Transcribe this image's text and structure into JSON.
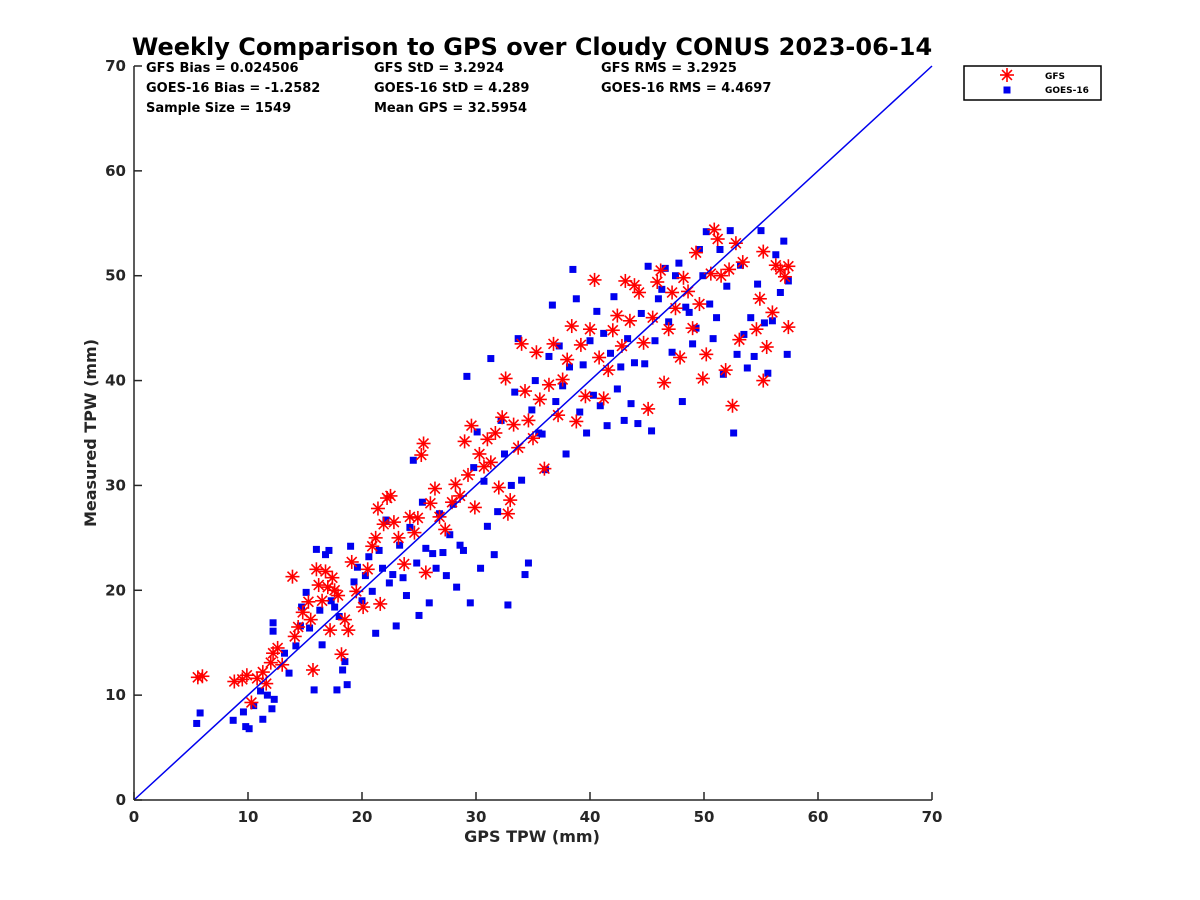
{
  "chart_data": {
    "type": "scatter",
    "title": "Weekly Comparison to GPS over Cloudy CONUS 2023-06-14",
    "xlabel": "GPS TPW (mm)",
    "ylabel": "Measured TPW (mm)",
    "xlim": [
      0,
      70
    ],
    "ylim": [
      0,
      70
    ],
    "xticks": [
      "0",
      "10",
      "20",
      "30",
      "40",
      "50",
      "60",
      "70"
    ],
    "yticks": [
      "0",
      "10",
      "20",
      "30",
      "40",
      "50",
      "60",
      "70"
    ],
    "grid": false,
    "legend_position": "outside-top-right",
    "reference_line": {
      "x": [
        0,
        70
      ],
      "y": [
        0,
        70
      ],
      "color": "#0000ee"
    },
    "stats": [
      [
        "GFS Bias = 0.024506",
        "GFS StD = 3.2924",
        "GFS RMS = 3.2925"
      ],
      [
        "GOES-16 Bias = -1.2582",
        "GOES-16 StD = 4.289",
        "GOES-16 RMS = 4.4697"
      ],
      [
        "Sample Size = 1549",
        "Mean GPS = 32.5954",
        ""
      ]
    ],
    "series": [
      {
        "name": "GFS",
        "marker": "asterisk",
        "color": "#ff0000",
        "points": [
          [
            5.6,
            11.7
          ],
          [
            6.0,
            11.8
          ],
          [
            8.8,
            11.3
          ],
          [
            9.5,
            11.5
          ],
          [
            9.9,
            11.9
          ],
          [
            10.3,
            9.3
          ],
          [
            10.8,
            11.6
          ],
          [
            11.3,
            12.2
          ],
          [
            11.6,
            11.1
          ],
          [
            12.0,
            13.1
          ],
          [
            12.2,
            14.0
          ],
          [
            12.6,
            14.5
          ],
          [
            13.0,
            12.9
          ],
          [
            13.9,
            21.3
          ],
          [
            14.1,
            15.6
          ],
          [
            14.4,
            16.5
          ],
          [
            14.8,
            17.9
          ],
          [
            15.3,
            18.9
          ],
          [
            15.5,
            17.2
          ],
          [
            15.7,
            12.4
          ],
          [
            16.0,
            22.0
          ],
          [
            16.2,
            20.5
          ],
          [
            16.5,
            19.0
          ],
          [
            16.8,
            21.8
          ],
          [
            17.0,
            20.3
          ],
          [
            17.2,
            16.2
          ],
          [
            17.4,
            21.2
          ],
          [
            17.6,
            20.0
          ],
          [
            17.9,
            19.5
          ],
          [
            18.2,
            13.9
          ],
          [
            18.5,
            17.2
          ],
          [
            18.8,
            16.2
          ],
          [
            19.1,
            22.7
          ],
          [
            19.5,
            19.9
          ],
          [
            20.1,
            18.4
          ],
          [
            20.5,
            22.0
          ],
          [
            20.9,
            24.2
          ],
          [
            21.2,
            25.0
          ],
          [
            21.4,
            27.8
          ],
          [
            21.6,
            18.7
          ],
          [
            21.9,
            26.3
          ],
          [
            22.2,
            28.8
          ],
          [
            22.5,
            29.0
          ],
          [
            22.8,
            26.5
          ],
          [
            23.2,
            25.0
          ],
          [
            23.7,
            22.5
          ],
          [
            24.2,
            27.0
          ],
          [
            24.6,
            25.5
          ],
          [
            24.9,
            26.9
          ],
          [
            25.2,
            32.9
          ],
          [
            25.4,
            34.0
          ],
          [
            25.6,
            21.7
          ],
          [
            26.0,
            28.3
          ],
          [
            26.4,
            29.7
          ],
          [
            26.8,
            27.0
          ],
          [
            27.3,
            25.8
          ],
          [
            27.9,
            28.4
          ],
          [
            28.2,
            30.1
          ],
          [
            28.6,
            29.0
          ],
          [
            29.0,
            34.2
          ],
          [
            29.3,
            31.0
          ],
          [
            29.6,
            35.7
          ],
          [
            29.9,
            27.9
          ],
          [
            30.3,
            33.0
          ],
          [
            30.7,
            31.8
          ],
          [
            31.0,
            34.4
          ],
          [
            31.3,
            32.2
          ],
          [
            31.7,
            35.0
          ],
          [
            32.0,
            29.8
          ],
          [
            32.3,
            36.5
          ],
          [
            32.6,
            40.2
          ],
          [
            32.8,
            27.3
          ],
          [
            33.0,
            28.6
          ],
          [
            33.3,
            35.8
          ],
          [
            33.7,
            33.6
          ],
          [
            34.0,
            43.5
          ],
          [
            34.3,
            39.0
          ],
          [
            34.6,
            36.2
          ],
          [
            35.0,
            34.5
          ],
          [
            35.3,
            42.7
          ],
          [
            35.6,
            38.2
          ],
          [
            36.0,
            31.6
          ],
          [
            36.4,
            39.6
          ],
          [
            36.8,
            43.5
          ],
          [
            37.2,
            36.7
          ],
          [
            37.6,
            40.1
          ],
          [
            38.0,
            42.0
          ],
          [
            38.4,
            45.2
          ],
          [
            38.8,
            36.1
          ],
          [
            39.2,
            43.4
          ],
          [
            39.6,
            38.5
          ],
          [
            40.0,
            44.9
          ],
          [
            40.4,
            49.6
          ],
          [
            40.8,
            42.2
          ],
          [
            41.2,
            38.3
          ],
          [
            41.6,
            41.0
          ],
          [
            42.0,
            44.8
          ],
          [
            42.4,
            46.2
          ],
          [
            42.8,
            43.3
          ],
          [
            43.1,
            49.5
          ],
          [
            43.5,
            45.7
          ],
          [
            43.9,
            49.1
          ],
          [
            44.3,
            48.4
          ],
          [
            44.7,
            43.6
          ],
          [
            45.1,
            37.3
          ],
          [
            45.5,
            46.0
          ],
          [
            45.9,
            49.4
          ],
          [
            46.2,
            50.5
          ],
          [
            46.5,
            39.8
          ],
          [
            46.9,
            44.9
          ],
          [
            47.2,
            48.4
          ],
          [
            47.5,
            46.9
          ],
          [
            47.9,
            42.2
          ],
          [
            48.2,
            49.8
          ],
          [
            48.6,
            48.5
          ],
          [
            49.0,
            45.0
          ],
          [
            49.3,
            52.2
          ],
          [
            49.6,
            47.3
          ],
          [
            49.9,
            40.2
          ],
          [
            50.2,
            42.5
          ],
          [
            50.6,
            50.2
          ],
          [
            50.9,
            54.4
          ],
          [
            51.2,
            53.5
          ],
          [
            51.5,
            50.0
          ],
          [
            51.9,
            41.0
          ],
          [
            52.2,
            50.6
          ],
          [
            52.5,
            37.6
          ],
          [
            52.8,
            53.1
          ],
          [
            53.1,
            43.9
          ],
          [
            53.4,
            51.3
          ],
          [
            54.6,
            44.9
          ],
          [
            54.9,
            47.8
          ],
          [
            55.2,
            52.3
          ],
          [
            55.5,
            43.2
          ],
          [
            55.2,
            40.0
          ],
          [
            56.0,
            46.5
          ],
          [
            56.3,
            51.0
          ],
          [
            56.7,
            50.6
          ],
          [
            57.1,
            49.9
          ],
          [
            57.4,
            50.9
          ],
          [
            57.4,
            45.1
          ]
        ]
      },
      {
        "name": "GOES-16",
        "marker": "square",
        "color": "#0000ee",
        "points": [
          [
            5.5,
            7.3
          ],
          [
            5.8,
            8.3
          ],
          [
            8.7,
            7.6
          ],
          [
            9.6,
            8.4
          ],
          [
            9.8,
            7.0
          ],
          [
            10.1,
            6.8
          ],
          [
            10.5,
            9.0
          ],
          [
            11.1,
            10.4
          ],
          [
            11.3,
            7.7
          ],
          [
            11.7,
            10.0
          ],
          [
            12.1,
            8.7
          ],
          [
            12.3,
            9.6
          ],
          [
            12.2,
            16.1
          ],
          [
            12.2,
            16.9
          ],
          [
            13.2,
            14.0
          ],
          [
            13.6,
            12.1
          ],
          [
            14.2,
            14.7
          ],
          [
            14.6,
            16.6
          ],
          [
            14.7,
            18.4
          ],
          [
            15.1,
            19.8
          ],
          [
            15.4,
            16.4
          ],
          [
            15.8,
            10.5
          ],
          [
            16.0,
            23.9
          ],
          [
            16.3,
            18.1
          ],
          [
            16.5,
            14.8
          ],
          [
            16.8,
            23.4
          ],
          [
            17.1,
            23.8
          ],
          [
            17.3,
            19.0
          ],
          [
            17.6,
            18.4
          ],
          [
            17.8,
            10.5
          ],
          [
            18.0,
            17.5
          ],
          [
            18.3,
            12.4
          ],
          [
            18.5,
            13.2
          ],
          [
            18.7,
            11.0
          ],
          [
            19.0,
            24.2
          ],
          [
            19.3,
            20.8
          ],
          [
            19.6,
            22.2
          ],
          [
            20.0,
            19.0
          ],
          [
            20.3,
            21.4
          ],
          [
            20.6,
            23.2
          ],
          [
            20.9,
            19.9
          ],
          [
            21.2,
            15.9
          ],
          [
            21.5,
            23.8
          ],
          [
            21.8,
            22.1
          ],
          [
            22.1,
            26.7
          ],
          [
            22.4,
            20.7
          ],
          [
            22.7,
            21.5
          ],
          [
            23.0,
            16.6
          ],
          [
            23.3,
            24.3
          ],
          [
            23.6,
            21.2
          ],
          [
            23.9,
            19.5
          ],
          [
            24.2,
            26.0
          ],
          [
            24.5,
            32.4
          ],
          [
            24.8,
            22.6
          ],
          [
            25.0,
            17.6
          ],
          [
            25.3,
            28.4
          ],
          [
            25.6,
            24.0
          ],
          [
            25.9,
            18.8
          ],
          [
            26.2,
            23.5
          ],
          [
            26.5,
            22.1
          ],
          [
            26.8,
            27.3
          ],
          [
            27.1,
            23.6
          ],
          [
            27.4,
            21.4
          ],
          [
            27.7,
            25.3
          ],
          [
            28.0,
            28.2
          ],
          [
            28.3,
            20.3
          ],
          [
            28.6,
            24.3
          ],
          [
            28.9,
            23.8
          ],
          [
            29.2,
            40.4
          ],
          [
            29.5,
            18.8
          ],
          [
            29.8,
            31.7
          ],
          [
            30.1,
            35.1
          ],
          [
            30.4,
            22.1
          ],
          [
            30.7,
            30.4
          ],
          [
            31.0,
            26.1
          ],
          [
            31.3,
            42.1
          ],
          [
            31.6,
            23.4
          ],
          [
            31.9,
            27.5
          ],
          [
            32.2,
            36.2
          ],
          [
            32.5,
            33.0
          ],
          [
            32.8,
            18.6
          ],
          [
            33.1,
            30.0
          ],
          [
            33.4,
            38.9
          ],
          [
            33.7,
            44.0
          ],
          [
            34.0,
            30.5
          ],
          [
            34.3,
            21.5
          ],
          [
            34.6,
            22.6
          ],
          [
            34.9,
            37.2
          ],
          [
            35.2,
            40.0
          ],
          [
            35.5,
            35.0
          ],
          [
            35.8,
            34.9
          ],
          [
            36.1,
            31.5
          ],
          [
            36.4,
            42.3
          ],
          [
            36.7,
            47.2
          ],
          [
            37.0,
            38.0
          ],
          [
            37.3,
            43.3
          ],
          [
            37.6,
            39.5
          ],
          [
            37.9,
            33.0
          ],
          [
            38.2,
            41.3
          ],
          [
            38.5,
            50.6
          ],
          [
            38.8,
            47.8
          ],
          [
            39.1,
            37.0
          ],
          [
            39.4,
            41.5
          ],
          [
            39.7,
            35.0
          ],
          [
            40.0,
            43.8
          ],
          [
            40.3,
            38.6
          ],
          [
            40.6,
            46.6
          ],
          [
            40.9,
            37.6
          ],
          [
            41.2,
            44.5
          ],
          [
            41.5,
            35.7
          ],
          [
            41.8,
            42.6
          ],
          [
            42.1,
            48.0
          ],
          [
            42.4,
            39.2
          ],
          [
            42.7,
            41.3
          ],
          [
            43.0,
            36.2
          ],
          [
            43.3,
            44.0
          ],
          [
            43.6,
            37.8
          ],
          [
            43.9,
            41.7
          ],
          [
            44.2,
            35.9
          ],
          [
            44.5,
            46.4
          ],
          [
            44.8,
            41.6
          ],
          [
            45.1,
            50.9
          ],
          [
            45.4,
            35.2
          ],
          [
            45.7,
            43.8
          ],
          [
            46.0,
            47.8
          ],
          [
            46.3,
            48.7
          ],
          [
            46.6,
            50.7
          ],
          [
            46.9,
            45.6
          ],
          [
            47.2,
            42.7
          ],
          [
            47.5,
            50.0
          ],
          [
            47.8,
            51.2
          ],
          [
            48.1,
            38.0
          ],
          [
            48.4,
            47.0
          ],
          [
            48.7,
            46.5
          ],
          [
            49.0,
            43.5
          ],
          [
            49.3,
            45.0
          ],
          [
            49.6,
            52.5
          ],
          [
            49.9,
            50.0
          ],
          [
            50.2,
            54.2
          ],
          [
            50.5,
            47.3
          ],
          [
            50.8,
            44.0
          ],
          [
            51.1,
            46.0
          ],
          [
            51.4,
            52.5
          ],
          [
            51.7,
            40.6
          ],
          [
            52.0,
            49.0
          ],
          [
            52.3,
            54.3
          ],
          [
            52.6,
            35.0
          ],
          [
            52.9,
            42.5
          ],
          [
            53.2,
            51.0
          ],
          [
            53.5,
            44.4
          ],
          [
            53.8,
            41.2
          ],
          [
            54.1,
            46.0
          ],
          [
            54.4,
            42.3
          ],
          [
            54.7,
            49.2
          ],
          [
            55.0,
            54.3
          ],
          [
            55.3,
            45.5
          ],
          [
            55.6,
            40.7
          ],
          [
            56.0,
            45.7
          ],
          [
            56.3,
            52.0
          ],
          [
            56.7,
            48.4
          ],
          [
            57.0,
            53.3
          ],
          [
            57.3,
            42.5
          ],
          [
            57.4,
            49.5
          ]
        ]
      }
    ]
  }
}
